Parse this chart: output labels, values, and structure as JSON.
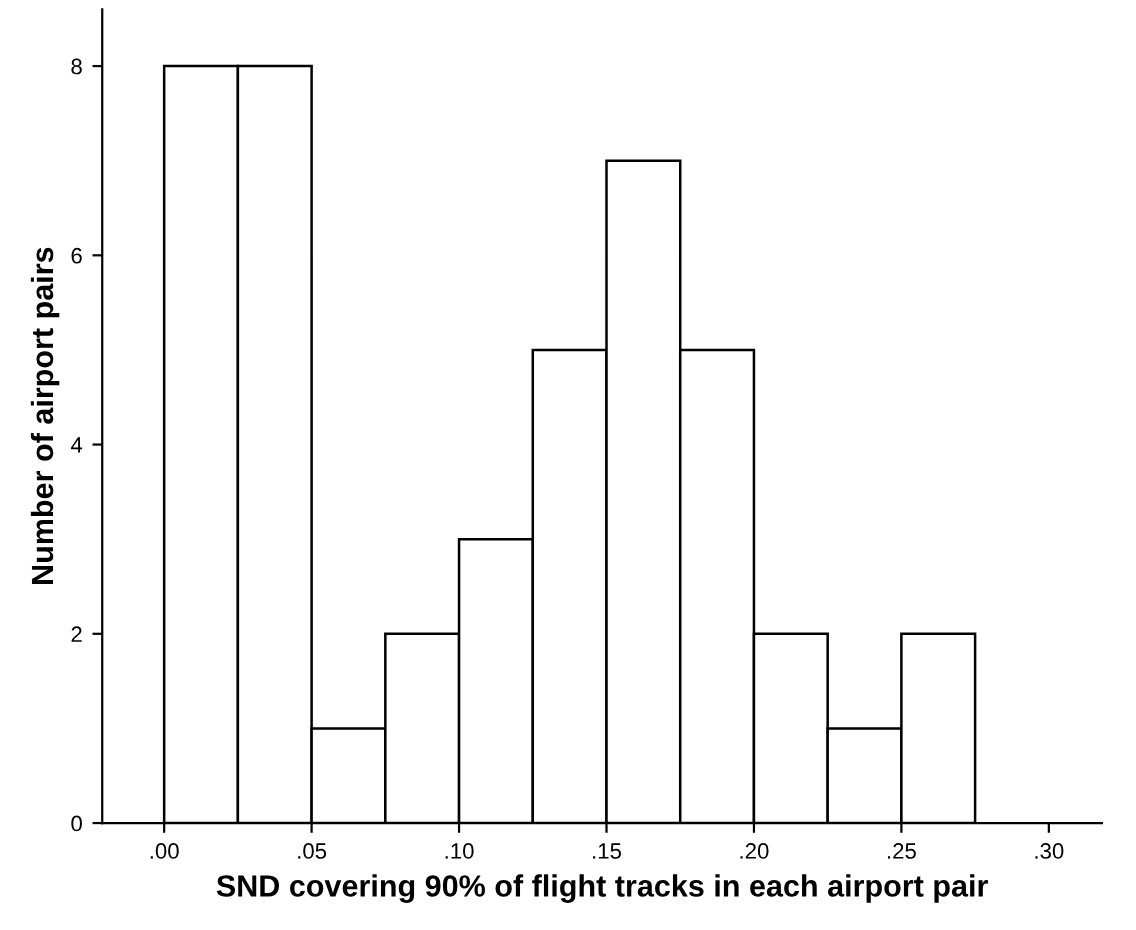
{
  "chart_data": {
    "type": "histogram",
    "xlabel": "SND covering 90% of flight tracks in each airport pair",
    "ylabel": "Number of airport pairs",
    "bins": [
      0,
      0.025,
      0.05,
      0.075,
      0.1,
      0.125,
      0.15,
      0.175,
      0.2,
      0.225,
      0.25,
      0.275
    ],
    "values": [
      8,
      8,
      1,
      2,
      3,
      5,
      7,
      5,
      2,
      1,
      2
    ],
    "color": "#ffffff",
    "xlim": [
      -0.021,
      0.318
    ],
    "xticks": [
      {
        "value": 0,
        "label": ".00"
      },
      {
        "value": 0.05,
        "label": ".05"
      },
      {
        "value": 0.1,
        "label": ".10"
      },
      {
        "value": 0.15,
        "label": ".15"
      },
      {
        "value": 0.2,
        "label": ".20"
      },
      {
        "value": 0.25,
        "label": ".25"
      },
      {
        "value": 0.3,
        "label": ".30"
      }
    ],
    "ylim": [
      0,
      8.6
    ],
    "yticks": [
      0,
      2,
      4,
      6,
      8
    ],
    "grid": false
  }
}
